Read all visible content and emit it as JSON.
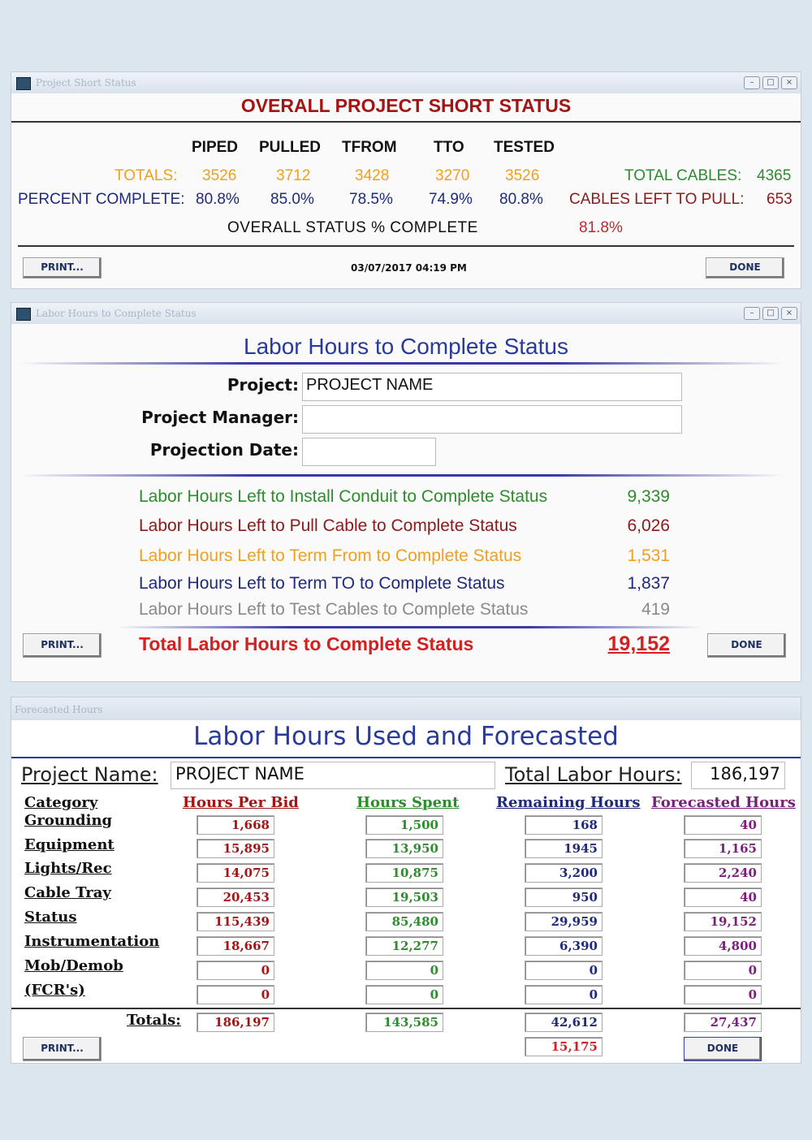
{
  "win1": {
    "title_bar": "Project Short Status",
    "heading": "OVERALL PROJECT SHORT STATUS",
    "columns": [
      "PIPED",
      "PULLED",
      "TFROM",
      "TTO",
      "TESTED"
    ],
    "totals_label": "TOTALS:",
    "totals": [
      "3526",
      "3712",
      "3428",
      "3270",
      "3526"
    ],
    "percent_label": "PERCENT COMPLETE:",
    "percents": [
      "80.8%",
      "85.0%",
      "78.5%",
      "74.9%",
      "80.8%"
    ],
    "total_cables_label": "TOTAL CABLES:",
    "total_cables": "4365",
    "cables_left_label": "CABLES LEFT TO PULL:",
    "cables_left": "653",
    "overall_label": "OVERALL STATUS % COMPLETE",
    "overall_value": "81.8%",
    "print": "PRINT...",
    "datetime": "03/07/2017 04:19 PM",
    "done": "DONE"
  },
  "win2": {
    "title_bar": "Labor Hours to Complete Status",
    "heading": "Labor Hours to Complete Status",
    "project_label": "Project:",
    "project_value": "PROJECT NAME",
    "manager_label": "Project Manager:",
    "manager_value": "",
    "date_label": "Projection Date:",
    "date_value": "",
    "rows": [
      {
        "label": "Labor Hours Left to Install Conduit to Complete Status",
        "value": "9,339"
      },
      {
        "label": "Labor Hours Left to Pull Cable to Complete Status",
        "value": "6,026"
      },
      {
        "label": "Labor Hours Left to Term From to Complete Status",
        "value": "1,531"
      },
      {
        "label": "Labor Hours Left to Term TO to Complete Status",
        "value": "1,837"
      },
      {
        "label": "Labor Hours Left to Test Cables to Complete Status",
        "value": "419"
      }
    ],
    "total_label": "Total Labor Hours to Complete Status",
    "total_value": "19,152",
    "print": "PRINT...",
    "done": "DONE",
    "colors": [
      "#2e8b2e",
      "#8b1a1a",
      "#f0a020",
      "#1f2a7a",
      "#8a8a8a"
    ]
  },
  "win3": {
    "title_bar": "Forecasted Hours",
    "heading": "Labor Hours Used and Forecasted",
    "project_label": "Project Name:",
    "project_value": "PROJECT NAME",
    "total_label": "Total Labor Hours:",
    "total_value": "186,197",
    "category_header": "Category",
    "col_headers": [
      "Hours Per Bid",
      "Hours Spent",
      "Remaining Hours",
      "Forecasted Hours"
    ],
    "categories": [
      "Grounding",
      "Equipment",
      "Lights/Rec",
      "Cable Tray",
      "Status",
      "Instrumentation",
      "Mob/Demob",
      "(FCR's)"
    ],
    "values": [
      [
        "1,668",
        "1,500",
        "168",
        "40"
      ],
      [
        "15,895",
        "13,950",
        "1945",
        "1,165"
      ],
      [
        "14,075",
        "10,875",
        "3,200",
        "2,240"
      ],
      [
        "20,453",
        "19,503",
        "950",
        "40"
      ],
      [
        "115,439",
        "85,480",
        "29,959",
        "19,152"
      ],
      [
        "18,667",
        "12,277",
        "6,390",
        "4,800"
      ],
      [
        "0",
        "0",
        "0",
        "0"
      ],
      [
        "0",
        "0",
        "0",
        "0"
      ]
    ],
    "totals_label": "Totals:",
    "totals": [
      "186,197",
      "143,585",
      "42,612",
      "27,437"
    ],
    "extra_value": "15,175",
    "print": "PRINT...",
    "done": "DONE"
  }
}
